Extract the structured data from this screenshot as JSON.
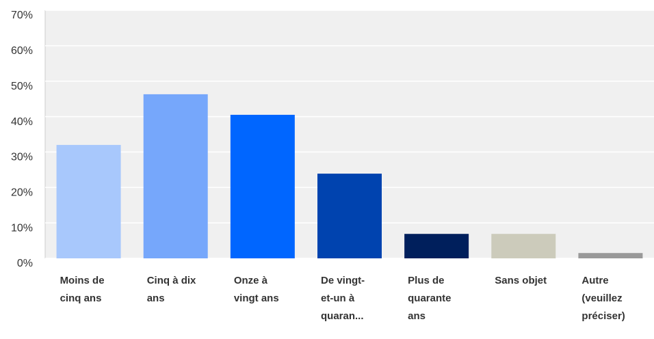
{
  "chart_data": {
    "type": "bar",
    "categories": [
      "Moins de cinq ans",
      "Cinq à dix ans",
      "Onze à vingt ans",
      "De vingt-et-un à quaran...",
      "Plus de quarante ans",
      "Sans objet",
      "Autre (veuillez préciser)"
    ],
    "values": [
      32,
      46.3,
      40.5,
      23.9,
      6.9,
      6.9,
      1.5
    ],
    "colors": [
      "#a8c8fc",
      "#76a7fb",
      "#0066ff",
      "#0043af",
      "#001f5c",
      "#cccbbb",
      "#999999"
    ],
    "ylim": [
      0,
      70
    ],
    "yticks": [
      {
        "value": 0,
        "label": "0%"
      },
      {
        "value": 10,
        "label": "10%"
      },
      {
        "value": 20,
        "label": "20%"
      },
      {
        "value": 30,
        "label": "30%"
      },
      {
        "value": 40,
        "label": "40%"
      },
      {
        "value": 50,
        "label": "50%"
      },
      {
        "value": 60,
        "label": "60%"
      },
      {
        "value": 70,
        "label": "70%"
      }
    ],
    "grid": true
  }
}
